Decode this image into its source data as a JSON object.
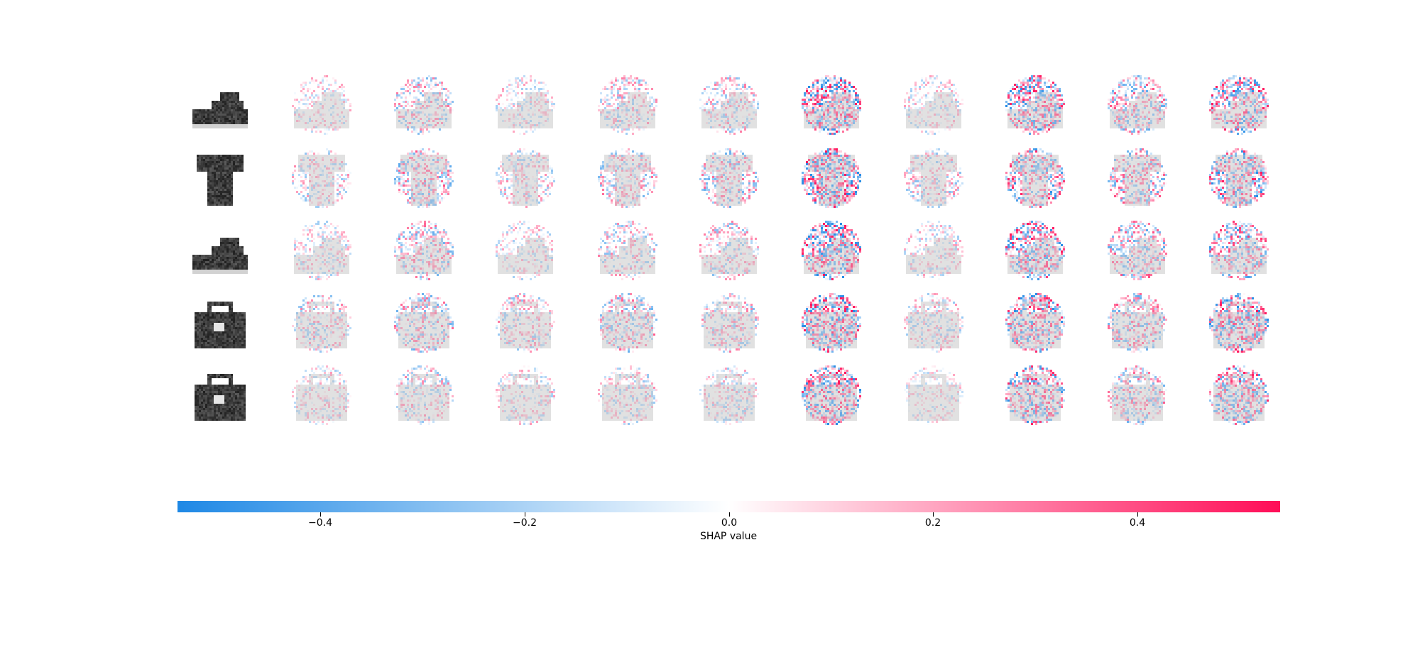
{
  "chart_data": {
    "type": "heatmap",
    "description_kind": "shap-image-plot",
    "rows": 5,
    "columns": 11,
    "row_images": [
      "sneaker",
      "t-shirt",
      "sneaker",
      "bag",
      "bag"
    ],
    "colorbar": {
      "label": "SHAP value",
      "range": [
        -0.54,
        0.54
      ],
      "ticks": [
        -0.4,
        -0.2,
        0.0,
        0.2,
        0.4
      ],
      "tick_labels": [
        "−0.4",
        "−0.2",
        "0.0",
        "0.2",
        "0.4"
      ],
      "colors": {
        "negative": "#1e88e5",
        "zero": "#ffffff",
        "positive": "#ff0d57"
      }
    },
    "class_emphasis": [
      [
        0.35,
        0.5,
        0.35,
        0.45,
        0.45,
        0.9,
        0.35,
        0.8,
        0.6,
        0.8
      ],
      [
        0.4,
        0.6,
        0.4,
        0.5,
        0.55,
        0.9,
        0.45,
        0.75,
        0.6,
        0.8
      ],
      [
        0.35,
        0.55,
        0.35,
        0.45,
        0.45,
        0.9,
        0.35,
        0.8,
        0.6,
        0.7
      ],
      [
        0.45,
        0.55,
        0.45,
        0.55,
        0.45,
        0.9,
        0.4,
        0.8,
        0.6,
        0.85
      ],
      [
        0.35,
        0.45,
        0.35,
        0.4,
        0.4,
        0.85,
        0.3,
        0.75,
        0.55,
        0.75
      ]
    ]
  }
}
